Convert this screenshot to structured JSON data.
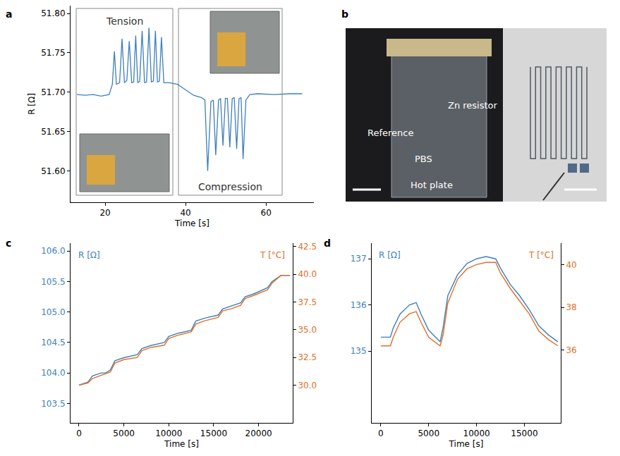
{
  "chart_data": [
    {
      "panel": "a",
      "type": "line",
      "color": "#3e7fbd",
      "x_label": "Time [s]",
      "y_label": "R [Ω]",
      "annotations": [
        "Tension",
        "Compression"
      ],
      "x": [
        13,
        15,
        17,
        19,
        21,
        21.8,
        22.3,
        22.8,
        23.6,
        24.2,
        24.8,
        25.4,
        26.0,
        26.6,
        27.1,
        27.6,
        28.1,
        28.6,
        29.2,
        29.8,
        30.3,
        30.9,
        31.5,
        32.0,
        32.5,
        33.0,
        33.5,
        34.0,
        34.6,
        36,
        38,
        40,
        42,
        44,
        44.8,
        45.5,
        46.3,
        46.9,
        47.5,
        48.2,
        48.7,
        49.3,
        49.9,
        50.4,
        51.0,
        51.6,
        52.1,
        52.7,
        53.3,
        53.8,
        54.3,
        55,
        56,
        58,
        62,
        66,
        69
      ],
      "values": [
        51.697,
        51.696,
        51.697,
        51.695,
        51.697,
        51.71,
        51.752,
        51.71,
        51.712,
        51.768,
        51.712,
        51.715,
        51.765,
        51.712,
        51.713,
        51.772,
        51.712,
        51.714,
        51.778,
        51.712,
        51.713,
        51.782,
        51.713,
        51.714,
        51.778,
        51.713,
        51.714,
        51.77,
        51.712,
        51.712,
        51.71,
        51.703,
        51.696,
        51.693,
        51.69,
        51.6,
        51.688,
        51.69,
        51.62,
        51.69,
        51.692,
        51.632,
        51.692,
        51.692,
        51.63,
        51.692,
        51.693,
        51.628,
        51.692,
        51.693,
        51.615,
        51.69,
        51.697,
        51.698,
        51.697,
        51.698,
        51.698
      ],
      "xlim": [
        11.4,
        71.9
      ],
      "ylim": [
        51.56,
        51.81
      ],
      "xticks": [
        20,
        40,
        60
      ],
      "yticks": [
        {
          "value": 51.6,
          "label": "51.60"
        },
        {
          "value": 51.65,
          "label": "51.65"
        },
        {
          "value": 51.7,
          "label": "51.70"
        },
        {
          "value": 51.75,
          "label": "51.75"
        },
        {
          "value": 51.8,
          "label": "51.80"
        }
      ]
    },
    {
      "panel": "b",
      "type": "image",
      "annotations": [
        "Reference",
        "Zn resistor",
        "PBS",
        "Hot plate"
      ]
    },
    {
      "panel": "c",
      "type": "line",
      "x_label": "Time [s]",
      "x": [
        0,
        1000,
        1500,
        2500,
        3000,
        3500,
        4000,
        5000,
        6500,
        7000,
        8000,
        9500,
        10000,
        11000,
        12500,
        13000,
        14000,
        15500,
        16000,
        17000,
        18000,
        18500,
        19500,
        21000,
        21500,
        22500,
        23500
      ],
      "series": [
        {
          "name": "R [Ω]",
          "color": "#3e7fbd",
          "values": [
            103.8,
            103.85,
            103.95,
            104.0,
            104.0,
            104.05,
            104.2,
            104.25,
            104.3,
            104.4,
            104.45,
            104.5,
            104.6,
            104.65,
            104.7,
            104.85,
            104.9,
            104.95,
            105.05,
            105.1,
            105.15,
            105.25,
            105.3,
            105.4,
            105.5,
            105.6,
            105.6
          ]
        },
        {
          "name": "T [°C]",
          "color": "#e0702a",
          "axis": "y2",
          "values": [
            30.0,
            30.2,
            30.6,
            30.9,
            31.0,
            31.2,
            32.0,
            32.3,
            32.5,
            33.1,
            33.4,
            33.6,
            34.2,
            34.5,
            34.8,
            35.5,
            35.8,
            36.1,
            36.7,
            36.9,
            37.2,
            37.8,
            38.1,
            38.6,
            39.2,
            39.9,
            39.9
          ]
        }
      ],
      "xlim": [
        -940,
        23800
      ],
      "ylim": [
        103.18,
        106.13
      ],
      "y2lim": [
        26.6,
        42.8
      ],
      "xticks": [
        0,
        5000,
        10000,
        15000,
        20000
      ],
      "yticks": [
        103.5,
        {
          "value": 104,
          "label": "104.0"
        },
        104.5,
        {
          "value": 105,
          "label": "105.0"
        },
        105.5,
        {
          "value": 106,
          "label": "106.0"
        }
      ],
      "y2ticks": [
        {
          "value": 30,
          "label": "30.0"
        },
        32.5,
        {
          "value": 35,
          "label": "35.0"
        },
        37.5,
        {
          "value": 40,
          "label": "40.0"
        },
        42.5
      ]
    },
    {
      "panel": "d",
      "type": "line",
      "x_label": "Time [s]",
      "x": [
        0,
        1000,
        1300,
        2000,
        3000,
        3700,
        4200,
        5000,
        6200,
        6500,
        7000,
        8000,
        9000,
        10000,
        11000,
        12000,
        12500,
        13500,
        14500,
        15500,
        16500,
        17500,
        18500
      ],
      "series": [
        {
          "name": "R [Ω]",
          "color": "#3e7fbd",
          "values": [
            135.3,
            135.3,
            135.5,
            135.8,
            136.0,
            136.05,
            135.8,
            135.45,
            135.2,
            135.5,
            136.2,
            136.65,
            136.9,
            137.0,
            137.05,
            137.0,
            136.8,
            136.45,
            136.2,
            135.9,
            135.55,
            135.35,
            135.2
          ]
        },
        {
          "name": "T [°C]",
          "color": "#e0702a",
          "axis": "y2",
          "values": [
            36.2,
            36.2,
            36.6,
            37.3,
            37.7,
            37.8,
            37.3,
            36.6,
            36.2,
            36.7,
            38.2,
            39.3,
            39.8,
            40.0,
            40.1,
            40.1,
            39.6,
            38.9,
            38.3,
            37.7,
            36.9,
            36.5,
            36.2
          ]
        }
      ],
      "xlim": [
        -950,
        18800
      ],
      "ylim": [
        133.44,
        137.34
      ],
      "y2lim": [
        32.6,
        41.0
      ],
      "xticks": [
        0,
        5000,
        10000,
        15000
      ],
      "yticks": [
        135,
        136,
        137
      ],
      "y2ticks": [
        36,
        38,
        40
      ]
    }
  ]
}
